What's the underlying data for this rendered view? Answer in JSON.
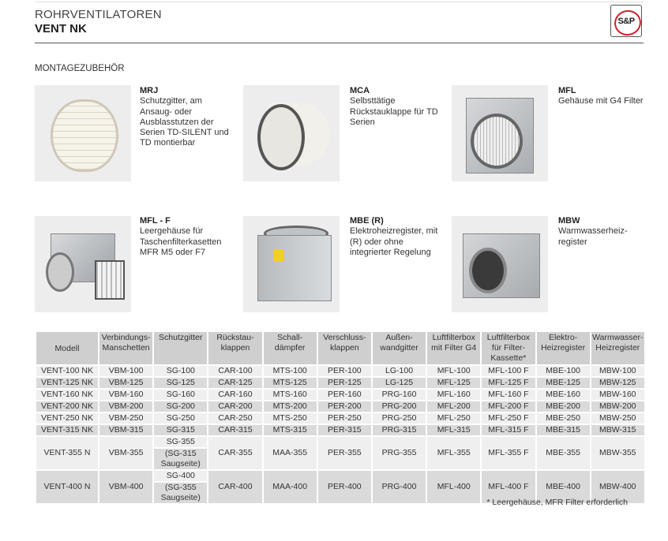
{
  "header": {
    "category": "ROHRVENTILATOREN",
    "product": "VENT NK",
    "logo_text": "S&P"
  },
  "section_title": "MONTAGEZUBEHÖR",
  "products": [
    {
      "code": "MRJ",
      "description": "Schutzgitter, am Ansaug- oder Ausblasstutzen der Serien TD-SILENT und TD montierbar"
    },
    {
      "code": "MCA",
      "description": "Selbsttätige Rückstauklappe für TD Serien"
    },
    {
      "code": "MFL",
      "description": "Gehäuse mit G4 Filter"
    },
    {
      "code": "MFL - F",
      "description": "Leergehäuse für Taschenfilterkasetten MFR M5 oder F7"
    },
    {
      "code": "MBE (R)",
      "description": "Elektroheizregister, mit (R) oder ohne integrierter Regelung"
    },
    {
      "code": "MBW",
      "description": "Warmwasserheiz-register"
    }
  ],
  "table": {
    "headers": [
      "Modell",
      "Verbindungs-Manschetten",
      "Schutzgitter",
      "Rückstau-klappen",
      "Schall-dämpfer",
      "Verschluss-klappen",
      "Außen-wandgitter",
      "Luftfilterbox mit Filter G4",
      "Luftfilterbox für Filter-Kassette*",
      "Elektro-Heizregister",
      "Warmwasser-Heizregister"
    ],
    "rows": [
      [
        "VENT-100 NK",
        "VBM-100",
        "SG-100",
        "CAR-100",
        "MTS-100",
        "PER-100",
        "LG-100",
        "MFL-100",
        "MFL-100 F",
        "MBE-100",
        "MBW-100"
      ],
      [
        "VENT-125 NK",
        "VBM-125",
        "SG-125",
        "CAR-125",
        "MTS-125",
        "PER-125",
        "LG-125",
        "MFL-125",
        "MFL-125 F",
        "MBE-125",
        "MBW-125"
      ],
      [
        "VENT-160 NK",
        "VBM-160",
        "SG-160",
        "CAR-160",
        "MTS-160",
        "PER-160",
        "PRG-160",
        "MFL-160",
        "MFL-160 F",
        "MBE-160",
        "MBW-160"
      ],
      [
        "VENT-200 NK",
        "VBM-200",
        "SG-200",
        "CAR-200",
        "MTS-200",
        "PER-200",
        "PRG-200",
        "MFL-200",
        "MFL-200 F",
        "MBE-200",
        "MBW-200"
      ],
      [
        "VENT-250 NK",
        "VBM-250",
        "SG-250",
        "CAR-250",
        "MTS-250",
        "PER-250",
        "PRG-250",
        "MFL-250",
        "MFL-250 F",
        "MBE-250",
        "MBW-250"
      ],
      [
        "VENT-315 NK",
        "VBM-315",
        "SG-315",
        "CAR-315",
        "MTS-315",
        "PER-315",
        "PRG-315",
        "MFL-315",
        "MFL-315 F",
        "MBE-315",
        "MBW-315"
      ]
    ],
    "split_rows": [
      {
        "cells": [
          "VENT-355 N",
          "VBM-355",
          "CAR-355",
          "MAA-355",
          "PER-355",
          "PRG-355",
          "MFL-355",
          "MFL-355 F",
          "MBE-355",
          "MBW-355"
        ],
        "sg_main": "SG-355",
        "sg_note": "(SG-315 Saugseite)"
      },
      {
        "cells": [
          "VENT-400 N",
          "VBM-400",
          "CAR-400",
          "MAA-400",
          "PER-400",
          "PRG-400",
          "MFL-400",
          "MFL-400 F",
          "MBE-400",
          "MBW-400"
        ],
        "sg_main": "SG-400",
        "sg_note": "(SG-355 Saugseite)"
      }
    ]
  },
  "footnote": "* Leergehäuse, MFR Filter erforderlich"
}
